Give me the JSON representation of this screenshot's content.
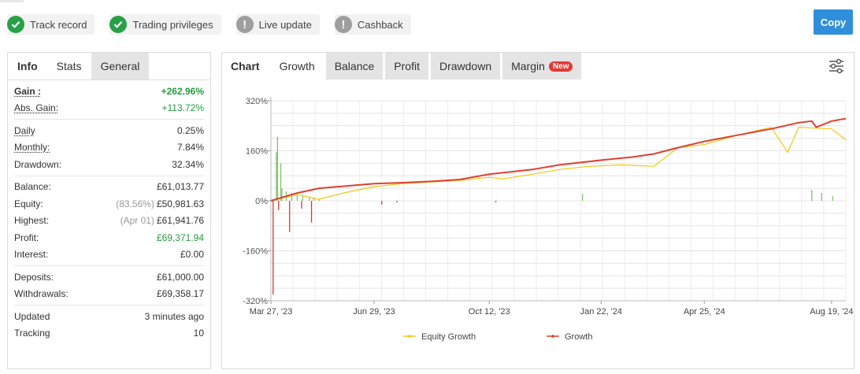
{
  "badges": [
    {
      "label": "Track record",
      "icon": "check-icon",
      "status": "verified"
    },
    {
      "label": "Trading privileges",
      "icon": "check-icon",
      "status": "verified"
    },
    {
      "label": "Live update",
      "icon": "exclamation-icon",
      "status": "inactive"
    },
    {
      "label": "Cashback",
      "icon": "exclamation-icon",
      "status": "inactive"
    }
  ],
  "copy_button": "Copy",
  "left_tabs": [
    "Info",
    "Stats",
    "General"
  ],
  "stats": {
    "gain_label": "Gain :",
    "gain": "+262.96%",
    "abs_gain_label": "Abs. Gain:",
    "abs_gain": "+113.72%",
    "daily_label": "Daily",
    "daily": "0.25%",
    "monthly_label": "Monthly:",
    "monthly": "7.84%",
    "drawdown_label": "Drawdown:",
    "drawdown": "32.34%",
    "balance_label": "Balance:",
    "balance": "£61,013.77",
    "equity_label": "Equity:",
    "equity_pct": "(83.56%)",
    "equity": "£50,981.63",
    "highest_label": "Highest:",
    "highest_date": "(Apr 01)",
    "highest": "£61,941.76",
    "profit_label": "Profit:",
    "profit": "£69,371.94",
    "interest_label": "Interest:",
    "interest": "£0.00",
    "deposits_label": "Deposits:",
    "deposits": "£61,000.00",
    "withdrawals_label": "Withdrawals:",
    "withdrawals": "£69,358.17",
    "updated_label": "Updated",
    "updated": "3 minutes ago",
    "tracking_label": "Tracking",
    "tracking": "10"
  },
  "chart_tabs": {
    "chart": "Chart",
    "growth": "Growth",
    "balance": "Balance",
    "profit": "Profit",
    "drawdown": "Drawdown",
    "margin": "Margin",
    "new_badge": "New"
  },
  "colors": {
    "growth": "#e0402f",
    "equity_growth": "#f5c518",
    "positive_bar": "#7cc46a",
    "negative_bar": "#d63a2f",
    "accent": "#2f8fdb"
  },
  "chart_data": {
    "type": "line",
    "x_tick_labels": [
      "Mar 27, '23",
      "Jun 29, '23",
      "Oct 12, '23",
      "Jan 22, '24",
      "Apr 25, '24",
      "Aug 19, '24"
    ],
    "y_tick_labels": [
      "320%",
      "160%",
      "0%",
      "-160%",
      "-320%"
    ],
    "ylim": [
      -320,
      320
    ],
    "grid": true,
    "legend_position": "bottom",
    "series": [
      {
        "name": "Equity Growth",
        "x": [
          "Mar 27, '23",
          "Apr 20, '23",
          "May 10, '23",
          "Jun 1, '23",
          "Jun 29, '23",
          "Jul 25, '23",
          "Aug 20, '23",
          "Sep 15, '23",
          "Oct 12, '23",
          "Oct 25, '23",
          "Nov 20, '23",
          "Dec 15, '23",
          "Jan 10, '24",
          "Feb 10, '24",
          "Mar 10, '24",
          "Apr 1, '24",
          "Apr 25, '24",
          "May 25, '24",
          "Jun 25, '24",
          "Jul 10, '24",
          "Jul 20, '24",
          "Aug 19, '24",
          "Sep 1, '24"
        ],
        "values": [
          0,
          20,
          5,
          25,
          45,
          55,
          60,
          65,
          75,
          70,
          85,
          100,
          110,
          115,
          110,
          170,
          180,
          210,
          235,
          155,
          235,
          230,
          195
        ]
      },
      {
        "name": "Growth",
        "x": [
          "Mar 27, '23",
          "Apr 20, '23",
          "May 10, '23",
          "Jun 29, '23",
          "Jul 25, '23",
          "Aug 20, '23",
          "Sep 15, '23",
          "Oct 12, '23",
          "Nov 20, '23",
          "Dec 15, '23",
          "Jan 22, '24",
          "Feb 20, '24",
          "Mar 10, '24",
          "Apr 1, '24",
          "Apr 25, '24",
          "May 25, '24",
          "Jun 25, '24",
          "Jul 20, '24",
          "Aug 1, '24",
          "Aug 5, '24",
          "Aug 19, '24",
          "Sep 1, '24"
        ],
        "values": [
          0,
          25,
          40,
          55,
          58,
          62,
          68,
          85,
          100,
          115,
          130,
          140,
          150,
          170,
          190,
          210,
          230,
          250,
          255,
          235,
          255,
          262.96
        ]
      }
    ],
    "bars": {
      "x": [
        "Apr 1, '23",
        "Apr 2, '23",
        "Apr 5, '23",
        "Apr 6, '23",
        "Apr 10, '23",
        "Apr 15, '23",
        "Apr 20, '23",
        "Apr 25, '23",
        "May 1, '23",
        "May 5, '23",
        "May 10, '23",
        "Mar 29, '23",
        "Apr 3, '23",
        "Apr 13, '23",
        "Apr 24, '23",
        "May 3, '23",
        "Jul 6, '23",
        "Jul 20, '23",
        "Oct 18, '23",
        "Jan 5, '24",
        "Aug 1, '24",
        "Aug 10, '24",
        "Aug 20, '24"
      ],
      "values": [
        155,
        205,
        120,
        40,
        30,
        25,
        20,
        15,
        12,
        8,
        6,
        -300,
        -30,
        -100,
        -25,
        -70,
        -12,
        -5,
        -5,
        22,
        35,
        25,
        15
      ]
    }
  }
}
